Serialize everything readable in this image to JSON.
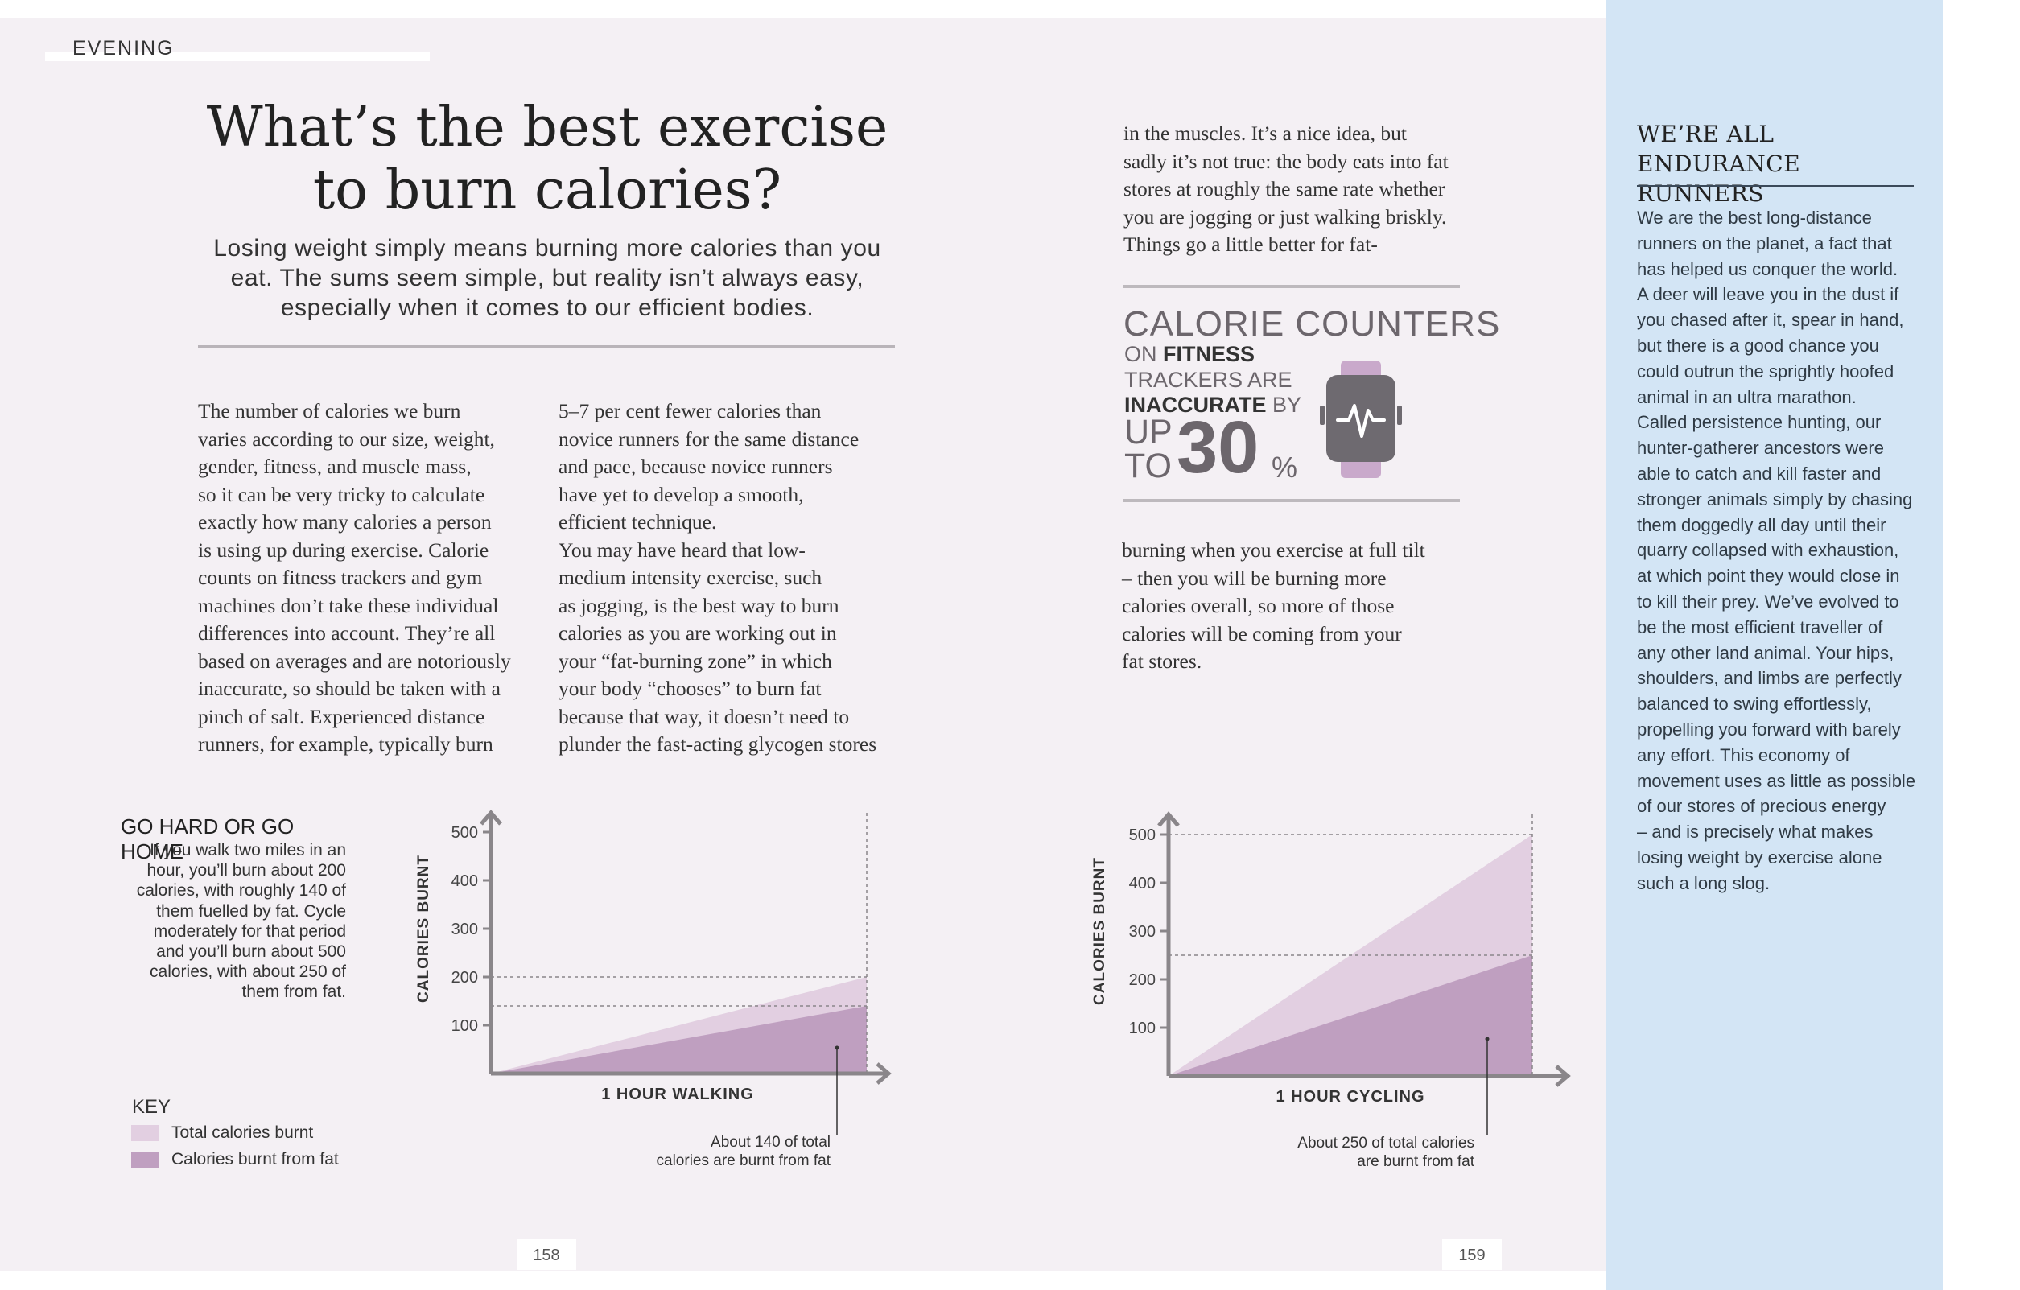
{
  "header": {
    "section": "EVENING"
  },
  "title": "What’s the best exercise\nto burn calories?",
  "intro": "Losing weight simply means burning more calories than you eat. The sums seem simple, but reality isn’t always easy, especially when it comes to our efficient bodies.",
  "body": {
    "col1": "The number of calories we burn\nvaries according to our size, weight,\ngender, fitness, and muscle mass,\nso it can be very tricky to calculate\nexactly how many calories a person\nis using up during exercise. Calorie\ncounts on fitness trackers and gym\nmachines don’t take these individual\ndifferences into account. They’re all\nbased on averages and are notoriously\ninaccurate, so should be taken with a\npinch of salt. Experienced distance\nrunners, for example, typically burn",
    "col2": "5–7 per cent fewer calories than\nnovice runners for the same distance\nand pace, because novice runners\nhave yet to develop a smooth,\nefficient technique.\n   You may have heard that low-\nmedium intensity exercise, such\nas jogging, is the best way to burn\ncalories as you are working out in\nyour “fat-burning zone” in which\nyour body “chooses” to burn fat\nbecause that way, it doesn’t need to\nplunder the fast-acting glycogen stores",
    "col3a": "in the muscles. It’s a nice idea, but\nsadly it’s not true: the body eats into fat\nstores at roughly the same rate whether\nyou are jogging or just walking briskly.\n   Things go a little better for fat-",
    "col3b": "burning when you exercise at full tilt\n– then you will be burning more\ncalories overall, so more of those\ncalories will be coming from your\nfat stores."
  },
  "callout": {
    "title": "CALORIE COUNTERS",
    "line1_a": "ON ",
    "line1_b": "FITNESS",
    "line2": "TRACKERS ARE",
    "line3_a": "INACCURATE",
    "line3_b": " BY",
    "up": "UP",
    "to": "TO",
    "number": "30",
    "percent": "%"
  },
  "sidebar": {
    "heading": "WE’RE ALL\nENDURANCE RUNNERS",
    "text": "We are the best long-distance\nrunners on the planet, a fact that\nhas helped us conquer the world.\nA deer will leave you in the dust if\nyou chased after it, spear in hand,\nbut there is a good chance you\ncould outrun the sprightly hoofed\nanimal in an ultra marathon.\n   Called persistence hunting, our\nhunter-gatherer ancestors were\nable to catch and kill faster and\nstronger animals simply by chasing\nthem doggedly all day until their\nquarry collapsed with exhaustion,\nat which point they would close in\nto kill their prey. We’ve evolved to\nbe the most efficient traveller of\nany other land animal. Your hips,\nshoulders, and limbs are perfectly\nbalanced to swing effortlessly,\npropelling you forward with barely\nany effort. This economy of\nmovement uses as little as possible\nof our stores of precious energy\n– and is precisely what makes\nlosing weight by exercise alone\nsuch a long slog."
  },
  "go_hard": {
    "title": "GO HARD OR GO HOME",
    "text": "If you walk two miles in an\nhour, you’ll burn about 200\ncalories, with roughly 140 of\nthem fuelled by fat. Cycle\nmoderately for that period\nand you’ll burn about 500\ncalories, with about 250 of\nthem from fat."
  },
  "key": {
    "title": "KEY",
    "items": [
      {
        "label": "Total calories burnt",
        "color": "#e2cfe1"
      },
      {
        "label": "Calories burnt from fat",
        "color": "#bf9fc0"
      }
    ]
  },
  "chart_data": [
    {
      "type": "area",
      "ylabel": "CALORIES BURNT",
      "xlabel": "1 HOUR WALKING",
      "yticks": [
        100,
        200,
        300,
        400,
        500
      ],
      "ylim": [
        0,
        550
      ],
      "x": [
        0,
        1
      ],
      "series": [
        {
          "name": "Total calories burnt",
          "values": [
            0,
            200
          ],
          "color": "#e2cfe1"
        },
        {
          "name": "Calories burnt from fat",
          "values": [
            0,
            140
          ],
          "color": "#bf9fc0"
        }
      ],
      "annotation": "About 140 of total\ncalories are burnt from fat"
    },
    {
      "type": "area",
      "ylabel": "CALORIES BURNT",
      "xlabel": "1 HOUR CYCLING",
      "yticks": [
        100,
        200,
        300,
        400,
        500
      ],
      "ylim": [
        0,
        550
      ],
      "x": [
        0,
        1
      ],
      "series": [
        {
          "name": "Total calories burnt",
          "values": [
            0,
            500
          ],
          "color": "#e2cfe1"
        },
        {
          "name": "Calories burnt from fat",
          "values": [
            0,
            250
          ],
          "color": "#bf9fc0"
        }
      ],
      "annotation": "About 250 of total calories\nare burnt from fat"
    }
  ],
  "pages": {
    "left": "158",
    "right": "159"
  },
  "colors": {
    "page": "#f4f0f4",
    "sidebar": "#d3e5f5",
    "axis": "#8a868a",
    "watch": "#6e6a70",
    "strap": "#c9a9cb"
  }
}
